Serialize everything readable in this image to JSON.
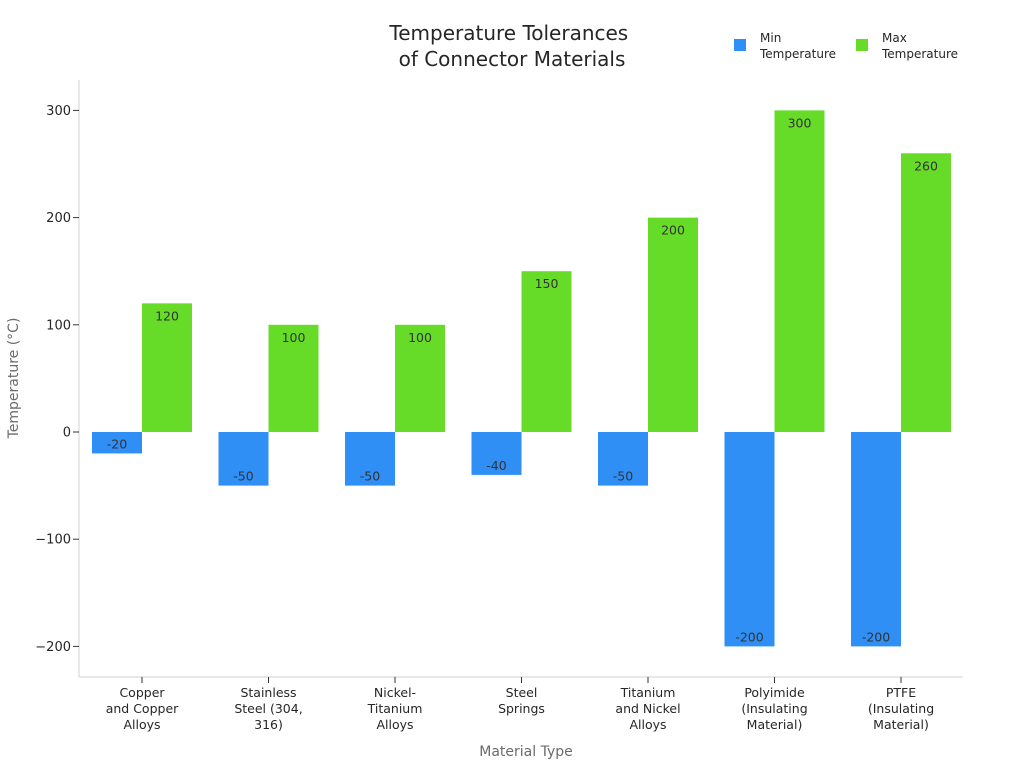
{
  "chart_data": {
    "type": "bar",
    "title": "Temperature Tolerances of Connector Materials",
    "title_lines": [
      "Temperature Tolerances",
      "of Connector Materials"
    ],
    "xlabel": "Material Type",
    "ylabel": "Temperature (°C)",
    "categories": [
      "Copper and Copper Alloys",
      "Stainless Steel (304, 316)",
      "Nickel-Titanium Alloys",
      "Steel Springs",
      "Titanium and Nickel Alloys",
      "Polyimide (Insulating Material)",
      "PTFE (Insulating Material)"
    ],
    "category_lines": [
      [
        "Copper",
        "and Copper",
        "Alloys"
      ],
      [
        "Stainless",
        "Steel (304,",
        "316)"
      ],
      [
        "Nickel-",
        "Titanium",
        "Alloys"
      ],
      [
        "Steel",
        "Springs"
      ],
      [
        "Titanium",
        "and Nickel",
        "Alloys"
      ],
      [
        "Polyimide",
        "(Insulating",
        "Material)"
      ],
      [
        "PTFE",
        "(Insulating",
        "Material)"
      ]
    ],
    "series": [
      {
        "name": "Min Temperature",
        "legend_lines": [
          "Min",
          "Temperature"
        ],
        "color": "#2f8ff5",
        "values": [
          -20,
          -50,
          -50,
          -40,
          -50,
          -200,
          -200
        ]
      },
      {
        "name": "Max Temperature",
        "legend_lines": [
          "Max",
          "Temperature"
        ],
        "color": "#66dc28",
        "values": [
          120,
          100,
          100,
          150,
          200,
          300,
          260
        ]
      }
    ],
    "yticks": [
      -200,
      -100,
      0,
      100,
      200,
      300
    ],
    "ytick_labels": [
      "−200",
      "−100",
      "0",
      "100",
      "200",
      "300"
    ],
    "ylim": [
      -230,
      330
    ],
    "grid": false,
    "legend_position": "top-right"
  }
}
